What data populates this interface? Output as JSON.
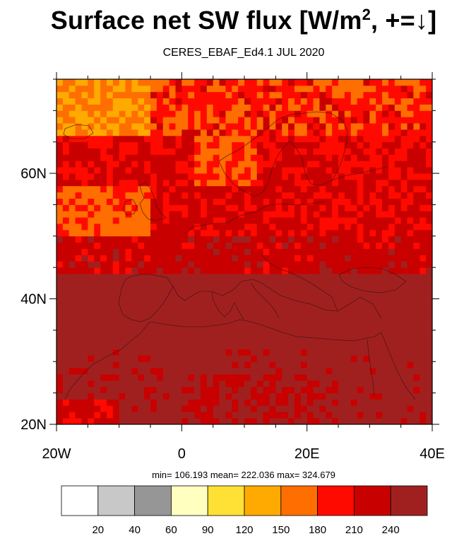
{
  "title_main": "Surface net SW flux [W/m",
  "title_sup": "2",
  "title_tail": ", +=↓]",
  "subtitle": "CERES_EBAF_Ed4.1 JUL 2020",
  "stats_text": "min= 106.193  mean= 222.036  max= 324.679",
  "map": {
    "lon_range": [
      -20,
      40
    ],
    "lat_range": [
      20,
      75
    ],
    "x_ticks": [
      {
        "value": -20,
        "label": "20W"
      },
      {
        "value": 0,
        "label": "0"
      },
      {
        "value": 20,
        "label": "20E"
      },
      {
        "value": 40,
        "label": "40E"
      }
    ],
    "y_ticks": [
      {
        "value": 20,
        "label": "20N"
      },
      {
        "value": 40,
        "label": "40N"
      },
      {
        "value": 60,
        "label": "60N"
      }
    ]
  },
  "colorbar": {
    "levels": [
      "20",
      "40",
      "60",
      "90",
      "120",
      "150",
      "180",
      "210",
      "240"
    ],
    "colors": [
      "#ffffff",
      "#c8c8c8",
      "#969696",
      "#ffffc0",
      "#ffe135",
      "#ffaa00",
      "#ff6e00",
      "#ff0a00",
      "#c80000",
      "#a02020"
    ]
  },
  "field": {
    "description_colors": {
      "level_150": "#ffaa00",
      "level_180": "#ff6e00",
      "level_120": "#ffe135",
      "level_210": "#ff0a00",
      "level_240": "#c80000",
      "level_max": "#a02020"
    }
  }
}
